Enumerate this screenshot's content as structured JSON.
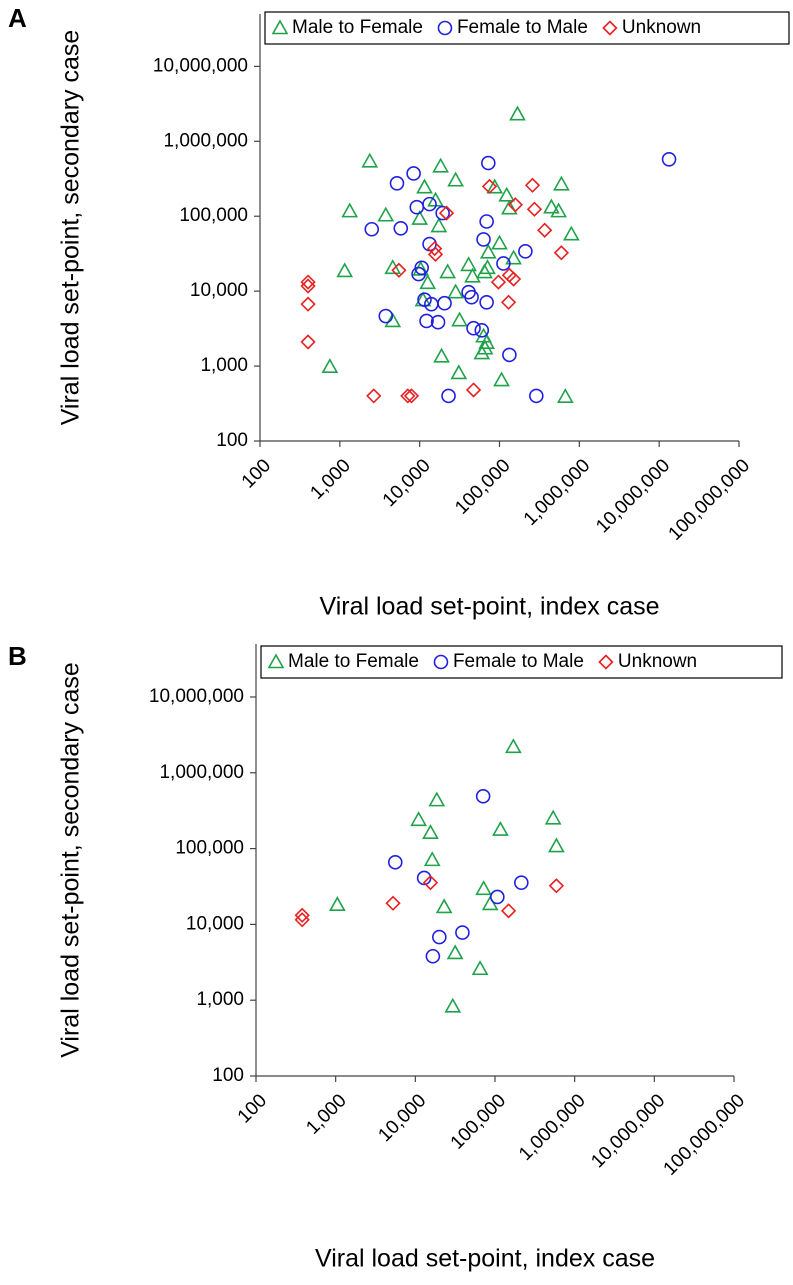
{
  "chart_data": [
    {
      "type": "scatter",
      "label": "A",
      "x_label": "Viral load set-point, index case",
      "y_label": "Viral load set-point, secondary case",
      "log_x": true,
      "log_y": true,
      "grid": false,
      "legend": "top",
      "xlim": [
        100,
        100000000
      ],
      "ylim": [
        100,
        50000000
      ],
      "xticks": [
        100,
        {
          "value": 1000,
          "label": "1,000"
        },
        {
          "value": 10000,
          "label": "10,000"
        },
        {
          "value": 100000,
          "label": "100,000"
        },
        {
          "value": 1000000,
          "label": "1,000,000"
        },
        {
          "value": 10000000,
          "label": "10,000,000"
        },
        {
          "value": 100000000,
          "label": "100,000,000"
        }
      ],
      "yticks": [
        100,
        {
          "value": 1000,
          "label": "1,000"
        },
        {
          "value": 10000,
          "label": "10,000"
        },
        {
          "value": 100000,
          "label": "100,000"
        },
        {
          "value": 1000000,
          "label": "1,000,000"
        },
        {
          "value": 10000000,
          "label": "10,000,000"
        }
      ],
      "series": [
        {
          "name": "Male to Female",
          "color": "#1fa34a",
          "marker": "triangle",
          "x": [
            168000,
            2370,
            18300,
            11500,
            28200,
            15800,
            596000,
            447000,
            550000,
            794000,
            123000,
            87000,
            133000,
            1330,
            3760,
            10000,
            17400,
            100000,
            72400,
            70800,
            150000,
            1150,
            4600,
            10300,
            22400,
            41000,
            45900,
            64900,
            12600,
            28200,
            11000,
            4600,
            31600,
            63100,
            69000,
            60000,
            18800,
            66000,
            750,
            30900,
            106000,
            668000
          ],
          "values": [
            2300000,
            541000,
            464000,
            244000,
            302000,
            163000,
            267000,
            132000,
            117000,
            57500,
            190000,
            244000,
            128000,
            117000,
            103000,
            93000,
            74000,
            43600,
            33000,
            20500,
            27500,
            18600,
            20500,
            19500,
            18000,
            22400,
            15800,
            18000,
            12900,
            9700,
            7600,
            4000,
            4100,
            2500,
            2050,
            1490,
            1350,
            1730,
            980,
            810,
            650,
            390
          ]
        },
        {
          "name": "Female to Male",
          "color": "#2020e0",
          "marker": "circle",
          "x": [
            13300000,
            72400,
            8400,
            5200,
            13300,
            9200,
            19400,
            69000,
            2510,
            5800,
            63100,
            13300,
            211000,
            112000,
            10600,
            9700,
            11500,
            41000,
            44700,
            14000,
            20500,
            69000,
            3760,
            12200,
            17000,
            47300,
            60000,
            133000,
            23000,
            289000
          ],
          "values": [
            575000,
            513000,
            372000,
            275000,
            145000,
            132000,
            110000,
            85000,
            67000,
            69000,
            49000,
            42500,
            34000,
            23400,
            20500,
            16900,
            7700,
            9700,
            8300,
            6700,
            6900,
            7100,
            4650,
            4000,
            3850,
            3200,
            3000,
            1410,
            400,
            400
          ]
        },
        {
          "name": "Unknown",
          "color": "#e82020",
          "marker": "diamond",
          "x": [
            400,
            400,
            400,
            400,
            2660,
            7100,
            7900,
            47300,
            5500,
            15400,
            15800,
            21700,
            75000,
            158000,
            259000,
            274000,
            368000,
            596000,
            97000,
            133000,
            150000,
            130000
          ],
          "values": [
            13200,
            11700,
            6700,
            2100,
            400,
            400,
            400,
            480,
            19000,
            37000,
            31000,
            110000,
            250000,
            142000,
            259000,
            124000,
            65000,
            32500,
            13200,
            16300,
            14500,
            7100
          ]
        }
      ]
    },
    {
      "type": "scatter",
      "label": "B",
      "x_label": "Viral load set-point, index case",
      "y_label": "Viral load set-point, secondary case",
      "log_x": true,
      "log_y": true,
      "grid": false,
      "legend": "top",
      "xlim": [
        100,
        100000000
      ],
      "ylim": [
        100,
        50000000
      ],
      "xticks": [
        100,
        {
          "value": 1000,
          "label": "1,000"
        },
        {
          "value": 10000,
          "label": "10,000"
        },
        {
          "value": 100000,
          "label": "100,000"
        },
        {
          "value": 1000000,
          "label": "1,000,000"
        },
        {
          "value": 10000000,
          "label": "10,000,000"
        },
        {
          "value": 100000000,
          "label": "100,000,000"
        }
      ],
      "yticks": [
        100,
        {
          "value": 1000,
          "label": "1,000"
        },
        {
          "value": 10000,
          "label": "10,000"
        },
        {
          "value": 100000,
          "label": "100,000"
        },
        {
          "value": 1000000,
          "label": "1,000,000"
        },
        {
          "value": 10000000,
          "label": "10,000,000"
        }
      ],
      "series": [
        {
          "name": "Male to Female",
          "color": "#1fa34a",
          "marker": "triangle",
          "x": [
            170000,
            18600,
            11000,
            15500,
            117000,
            590000,
            537000,
            16300,
            1050,
            23000,
            72000,
            87000,
            31600,
            65000,
            29500
          ],
          "values": [
            2200000,
            436000,
            240000,
            162000,
            178000,
            108000,
            251000,
            71000,
            18200,
            17000,
            29500,
            18600,
            4200,
            2600,
            830
          ]
        },
        {
          "name": "Female to Male",
          "color": "#2020e0",
          "marker": "circle",
          "x": [
            71000,
            5600,
            12900,
            214000,
            107000,
            39000,
            20000,
            16600
          ],
          "values": [
            490000,
            66000,
            41000,
            35500,
            23000,
            7800,
            6800,
            3800
          ]
        },
        {
          "name": "Unknown",
          "color": "#e82020",
          "marker": "diamond",
          "x": [
            380,
            380,
            5250,
            15500,
            148000,
            590000
          ],
          "values": [
            13200,
            11500,
            19000,
            35500,
            15100,
            32300
          ]
        }
      ]
    }
  ]
}
